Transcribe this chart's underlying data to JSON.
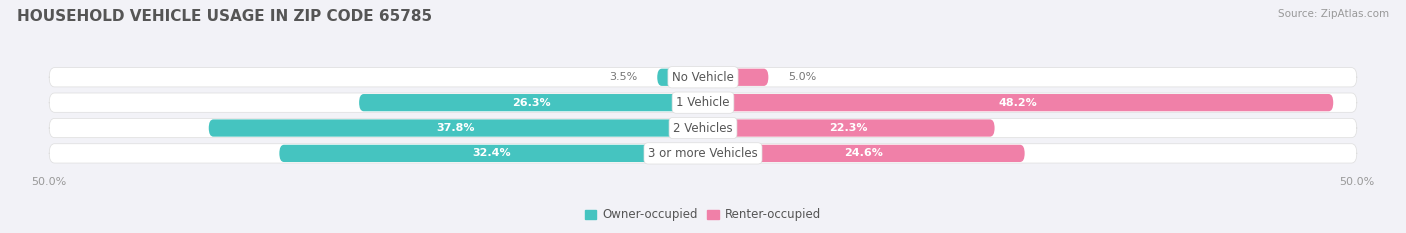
{
  "title": "HOUSEHOLD VEHICLE USAGE IN ZIP CODE 65785",
  "source": "Source: ZipAtlas.com",
  "categories": [
    "No Vehicle",
    "1 Vehicle",
    "2 Vehicles",
    "3 or more Vehicles"
  ],
  "owner_values": [
    3.5,
    26.3,
    37.8,
    32.4
  ],
  "renter_values": [
    5.0,
    48.2,
    22.3,
    24.6
  ],
  "owner_color": "#45C4C0",
  "renter_color": "#F080A8",
  "row_bg_color": "#E8E8EC",
  "bg_color": "#F2F2F7",
  "x_min": -50.0,
  "x_max": 50.0,
  "legend_owner": "Owner-occupied",
  "legend_renter": "Renter-occupied",
  "label_inside_color": "white",
  "label_outside_color": "#777777",
  "label_fontsize": 8.0,
  "category_fontsize": 8.5,
  "title_fontsize": 11,
  "source_fontsize": 7.5,
  "inside_threshold": 10
}
